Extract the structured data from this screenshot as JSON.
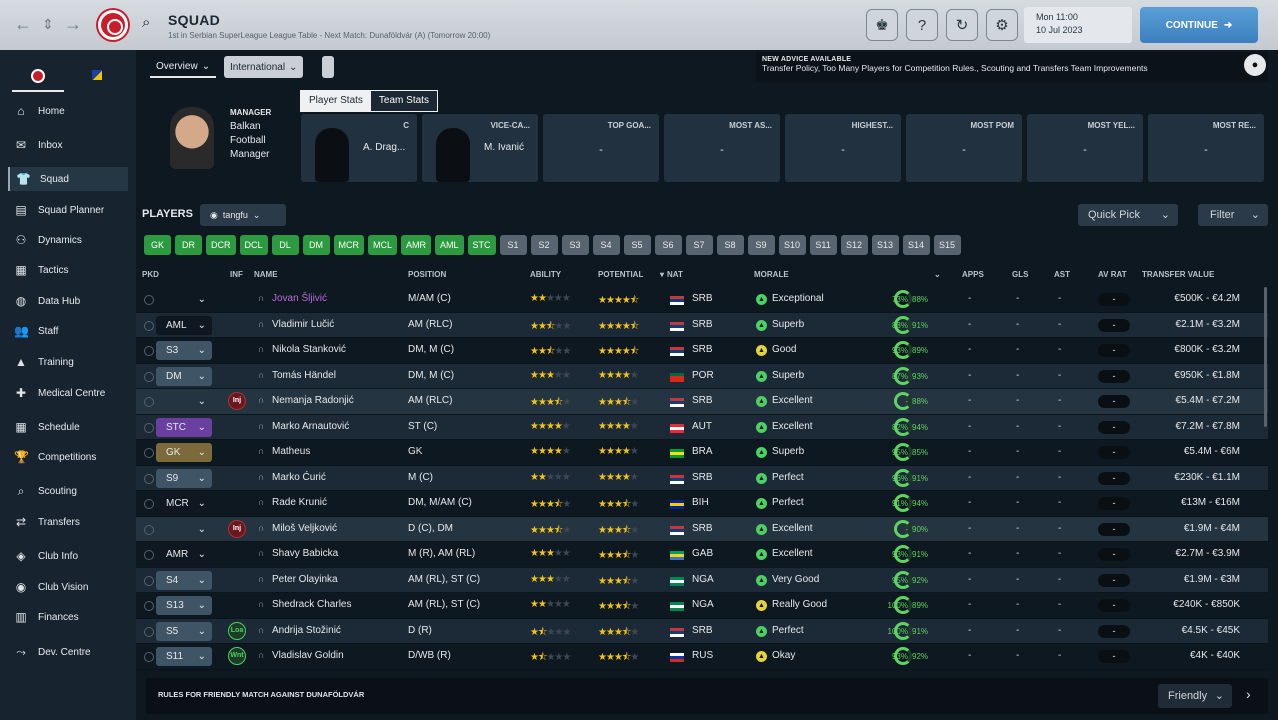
{
  "topbar": {
    "title": "SQUAD",
    "subtitle": "1st in Serbian SuperLeague League Table - Next Match: Dunaföldvár (A) (Tomorrow 20:00)",
    "date_line1": "Mon 11:00",
    "date_line2": "10 Jul 2023",
    "continue_label": "CONTINUE"
  },
  "sidebar": {
    "items": [
      {
        "label": "Home",
        "icon": "home-icon",
        "glyph": "⌂"
      },
      {
        "label": "Inbox",
        "icon": "inbox-icon",
        "glyph": "✉"
      },
      {
        "label": "Squad",
        "icon": "squad-icon",
        "glyph": "👕"
      },
      {
        "label": "Squad Planner",
        "icon": "squad-planner-icon",
        "glyph": "▤"
      },
      {
        "label": "Dynamics",
        "icon": "dynamics-icon",
        "glyph": "⚇"
      },
      {
        "label": "Tactics",
        "icon": "tactics-icon",
        "glyph": "▦"
      },
      {
        "label": "Data Hub",
        "icon": "data-hub-icon",
        "glyph": "◍"
      },
      {
        "label": "Staff",
        "icon": "staff-icon",
        "glyph": "👥"
      },
      {
        "label": "Training",
        "icon": "training-icon",
        "glyph": "▲"
      },
      {
        "label": "Medical Centre",
        "icon": "medical-icon",
        "glyph": "✚"
      },
      {
        "label": "Schedule",
        "icon": "schedule-icon",
        "glyph": "▦"
      },
      {
        "label": "Competitions",
        "icon": "trophy-icon",
        "glyph": "🏆"
      },
      {
        "label": "Scouting",
        "icon": "scouting-icon",
        "glyph": "⌕"
      },
      {
        "label": "Transfers",
        "icon": "transfers-icon",
        "glyph": "⇄"
      },
      {
        "label": "Club Info",
        "icon": "club-info-icon",
        "glyph": "◈"
      },
      {
        "label": "Club Vision",
        "icon": "club-vision-icon",
        "glyph": "◉"
      },
      {
        "label": "Finances",
        "icon": "finances-icon",
        "glyph": "▥"
      },
      {
        "label": "Dev. Centre",
        "icon": "dev-centre-icon",
        "glyph": "⤳"
      }
    ]
  },
  "tabs": {
    "overview": "Overview",
    "international": "International"
  },
  "news": {
    "title": "NEW ADVICE AVAILABLE",
    "text": "Transfer Policy, Too Many Players for Competition Rules., Scouting and Transfers Team Improvements"
  },
  "manager": {
    "label": "MANAGER",
    "name": "Balkan Football Manager"
  },
  "stat_tabs": {
    "player": "Player Stats",
    "team": "Team Stats"
  },
  "cards": [
    {
      "title": "C",
      "value": "A. Drag..."
    },
    {
      "title": "VICE-CA...",
      "value": "M. Ivanić"
    },
    {
      "title": "TOP GOA...",
      "value": "-"
    },
    {
      "title": "MOST AS...",
      "value": "-"
    },
    {
      "title": "HIGHEST...",
      "value": "-"
    },
    {
      "title": "MOST POM",
      "value": "-"
    },
    {
      "title": "MOST YEL...",
      "value": "-"
    },
    {
      "title": "MOST RE...",
      "value": "-"
    }
  ],
  "players_label": "PLAYERS",
  "view_name": "tangfu",
  "quick_pick": "Quick Pick",
  "filter": "Filter",
  "positions": [
    "GK",
    "DR",
    "DCR",
    "DCL",
    "DL",
    "DM",
    "MCR",
    "MCL",
    "AMR",
    "AML",
    "STC",
    "S1",
    "S2",
    "S3",
    "S4",
    "S5",
    "S6",
    "S7",
    "S8",
    "S9",
    "S10",
    "S11",
    "S12",
    "S13",
    "S14",
    "S15"
  ],
  "positions_filled": 11,
  "columns": {
    "pkd": "PKD",
    "inf": "INF",
    "name": "NAME",
    "position": "POSITION",
    "ability": "ABILITY",
    "potential": "POTENTIAL",
    "nat": "NAT",
    "morale": "MORALE",
    "apps": "APPS",
    "gls": "GLS",
    "ast": "AST",
    "avrat": "AV RAT",
    "value": "TRANSFER VALUE"
  },
  "players": [
    {
      "pick": "",
      "pickc": "n",
      "inf": "",
      "name": "Jovan Šljivić",
      "pos": "M/AM (C)",
      "ab": 2,
      "pot": 4.5,
      "nat": "SRB",
      "flag": [
        "#c6363c",
        "#0c4076",
        "#fff"
      ],
      "mor": "Exceptional",
      "mc": "#4bd062",
      "f1": "73%",
      "f2": "88%",
      "apps": "-",
      "gls": "-",
      "ast": "-",
      "av": "-",
      "tv": "€500K - €4.2M"
    },
    {
      "pick": "AML",
      "pickc": "d",
      "inf": "",
      "name": "Vladimir Lučić",
      "pos": "AM (RLC)",
      "ab": 2.5,
      "pot": 4.5,
      "nat": "SRB",
      "flag": [
        "#c6363c",
        "#0c4076",
        "#fff"
      ],
      "mor": "Superb",
      "mc": "#4bd062",
      "f1": "88%",
      "f2": "91%",
      "apps": "-",
      "gls": "-",
      "ast": "-",
      "av": "-",
      "tv": "€2.1M - €3.2M"
    },
    {
      "pick": "S3",
      "pickc": "t",
      "inf": "",
      "name": "Nikola Stanković",
      "pos": "DM, M (C)",
      "ab": 2.5,
      "pot": 4.5,
      "nat": "SRB",
      "flag": [
        "#c6363c",
        "#0c4076",
        "#fff"
      ],
      "mor": "Good",
      "mc": "#e6d23a",
      "f1": "93%",
      "f2": "89%",
      "apps": "-",
      "gls": "-",
      "ast": "-",
      "av": "-",
      "tv": "€800K - €3.2M"
    },
    {
      "pick": "DM",
      "pickc": "t",
      "inf": "",
      "name": "Tomás Händel",
      "pos": "DM, M (C)",
      "ab": 3,
      "pot": 4,
      "nat": "POR",
      "flag": [
        "#046a38",
        "#da291c",
        "#da291c"
      ],
      "mor": "Superb",
      "mc": "#4bd062",
      "f1": "87%",
      "f2": "93%",
      "apps": "-",
      "gls": "-",
      "ast": "-",
      "av": "-",
      "tv": "€950K - €1.8M"
    },
    {
      "pick": "",
      "pickc": "n",
      "inf": "Inj",
      "name": "Nemanja Radonjić",
      "pos": "AM (RLC)",
      "ab": 3.5,
      "pot": 3.5,
      "nat": "SRB",
      "flag": [
        "#c6363c",
        "#0c4076",
        "#fff"
      ],
      "mor": "Excellent",
      "mc": "#4bd062",
      "f1": "-",
      "f2": "88%",
      "apps": "-",
      "gls": "-",
      "ast": "-",
      "av": "-",
      "tv": "€5.4M - €7.2M"
    },
    {
      "pick": "STC",
      "pickc": "p",
      "inf": "",
      "name": "Marko Arnautović",
      "pos": "ST (C)",
      "ab": 4,
      "pot": 4,
      "nat": "AUT",
      "flag": [
        "#ed2939",
        "#fff",
        "#ed2939"
      ],
      "mor": "Excellent",
      "mc": "#4bd062",
      "f1": "82%",
      "f2": "94%",
      "apps": "-",
      "gls": "-",
      "ast": "-",
      "av": "-",
      "tv": "€7.2M - €7.8M"
    },
    {
      "pick": "GK",
      "pickc": "o",
      "inf": "",
      "name": "Matheus",
      "pos": "GK",
      "ab": 4,
      "pot": 4,
      "nat": "BRA",
      "flag": [
        "#009c3b",
        "#ffdf00",
        "#009c3b"
      ],
      "mor": "Superb",
      "mc": "#4bd062",
      "f1": "95%",
      "f2": "85%",
      "apps": "-",
      "gls": "-",
      "ast": "-",
      "av": "-",
      "tv": "€5.4M - €6M"
    },
    {
      "pick": "S9",
      "pickc": "t",
      "inf": "",
      "name": "Marko Ćurić",
      "pos": "M (C)",
      "ab": 2,
      "pot": 4,
      "nat": "SRB",
      "flag": [
        "#c6363c",
        "#0c4076",
        "#fff"
      ],
      "mor": "Perfect",
      "mc": "#4bd062",
      "f1": "96%",
      "f2": "91%",
      "apps": "-",
      "gls": "-",
      "ast": "-",
      "av": "-",
      "tv": "€230K - €1.1M"
    },
    {
      "pick": "MCR",
      "pickc": "d",
      "inf": "",
      "name": "Rade Krunić",
      "pos": "DM, M/AM (C)",
      "ab": 3.5,
      "pot": 3.5,
      "nat": "BIH",
      "flag": [
        "#002395",
        "#fecb00",
        "#002395"
      ],
      "mor": "Perfect",
      "mc": "#4bd062",
      "f1": "91%",
      "f2": "94%",
      "apps": "-",
      "gls": "-",
      "ast": "-",
      "av": "-",
      "tv": "€13M - €16M"
    },
    {
      "pick": "",
      "pickc": "n",
      "inf": "Inj",
      "name": "Miloš Veljković",
      "pos": "D (C), DM",
      "ab": 3.5,
      "pot": 3.5,
      "nat": "SRB",
      "flag": [
        "#c6363c",
        "#0c4076",
        "#fff"
      ],
      "mor": "Excellent",
      "mc": "#4bd062",
      "f1": "-",
      "f2": "90%",
      "apps": "-",
      "gls": "-",
      "ast": "-",
      "av": "-",
      "tv": "€1.9M - €4M"
    },
    {
      "pick": "AMR",
      "pickc": "d",
      "inf": "",
      "name": "Shavy Babicka",
      "pos": "M (R), AM (RL)",
      "ab": 3,
      "pot": 3.5,
      "nat": "GAB",
      "flag": [
        "#009e60",
        "#fcd116",
        "#3a75c4"
      ],
      "mor": "Excellent",
      "mc": "#4bd062",
      "f1": "93%",
      "f2": "91%",
      "apps": "-",
      "gls": "-",
      "ast": "-",
      "av": "-",
      "tv": "€2.7M - €3.9M"
    },
    {
      "pick": "S4",
      "pickc": "t",
      "inf": "",
      "name": "Peter Olayinka",
      "pos": "AM (RL), ST (C)",
      "ab": 3,
      "pot": 3.5,
      "nat": "NGA",
      "flag": [
        "#008751",
        "#fff",
        "#008751"
      ],
      "mor": "Very Good",
      "mc": "#4bd062",
      "f1": "95%",
      "f2": "92%",
      "apps": "-",
      "gls": "-",
      "ast": "-",
      "av": "-",
      "tv": "€1.9M - €3M"
    },
    {
      "pick": "S13",
      "pickc": "t",
      "inf": "",
      "name": "Shedrack Charles",
      "pos": "AM (RL), ST (C)",
      "ab": 2,
      "pot": 3.5,
      "nat": "NGA",
      "flag": [
        "#008751",
        "#fff",
        "#008751"
      ],
      "mor": "Really Good",
      "mc": "#e6d23a",
      "f1": "100%",
      "f2": "89%",
      "apps": "-",
      "gls": "-",
      "ast": "-",
      "av": "-",
      "tv": "€240K - €850K"
    },
    {
      "pick": "S5",
      "pickc": "t",
      "inf": "Loa",
      "name": "Andrija Stožinić",
      "pos": "D (R)",
      "ab": 1.5,
      "pot": 3.5,
      "nat": "SRB",
      "flag": [
        "#c6363c",
        "#0c4076",
        "#fff"
      ],
      "mor": "Perfect",
      "mc": "#4bd062",
      "f1": "100%",
      "f2": "91%",
      "apps": "-",
      "gls": "-",
      "ast": "-",
      "av": "-",
      "tv": "€4.5K - €45K"
    },
    {
      "pick": "S11",
      "pickc": "t",
      "inf": "Wnt",
      "name": "Vladislav Goldin",
      "pos": "D/WB (R)",
      "ab": 1.5,
      "pot": 3.5,
      "nat": "RUS",
      "flag": [
        "#fff",
        "#0039a6",
        "#d52b1e"
      ],
      "mor": "Okay",
      "mc": "#e6d23a",
      "f1": "93%",
      "f2": "92%",
      "apps": "-",
      "gls": "-",
      "ast": "-",
      "av": "-",
      "tv": "€4K - €40K"
    }
  ],
  "bottom": {
    "text": "RULES FOR FRIENDLY MATCH AGAINST DUNAFÖLDVÁR",
    "select": "Friendly"
  }
}
